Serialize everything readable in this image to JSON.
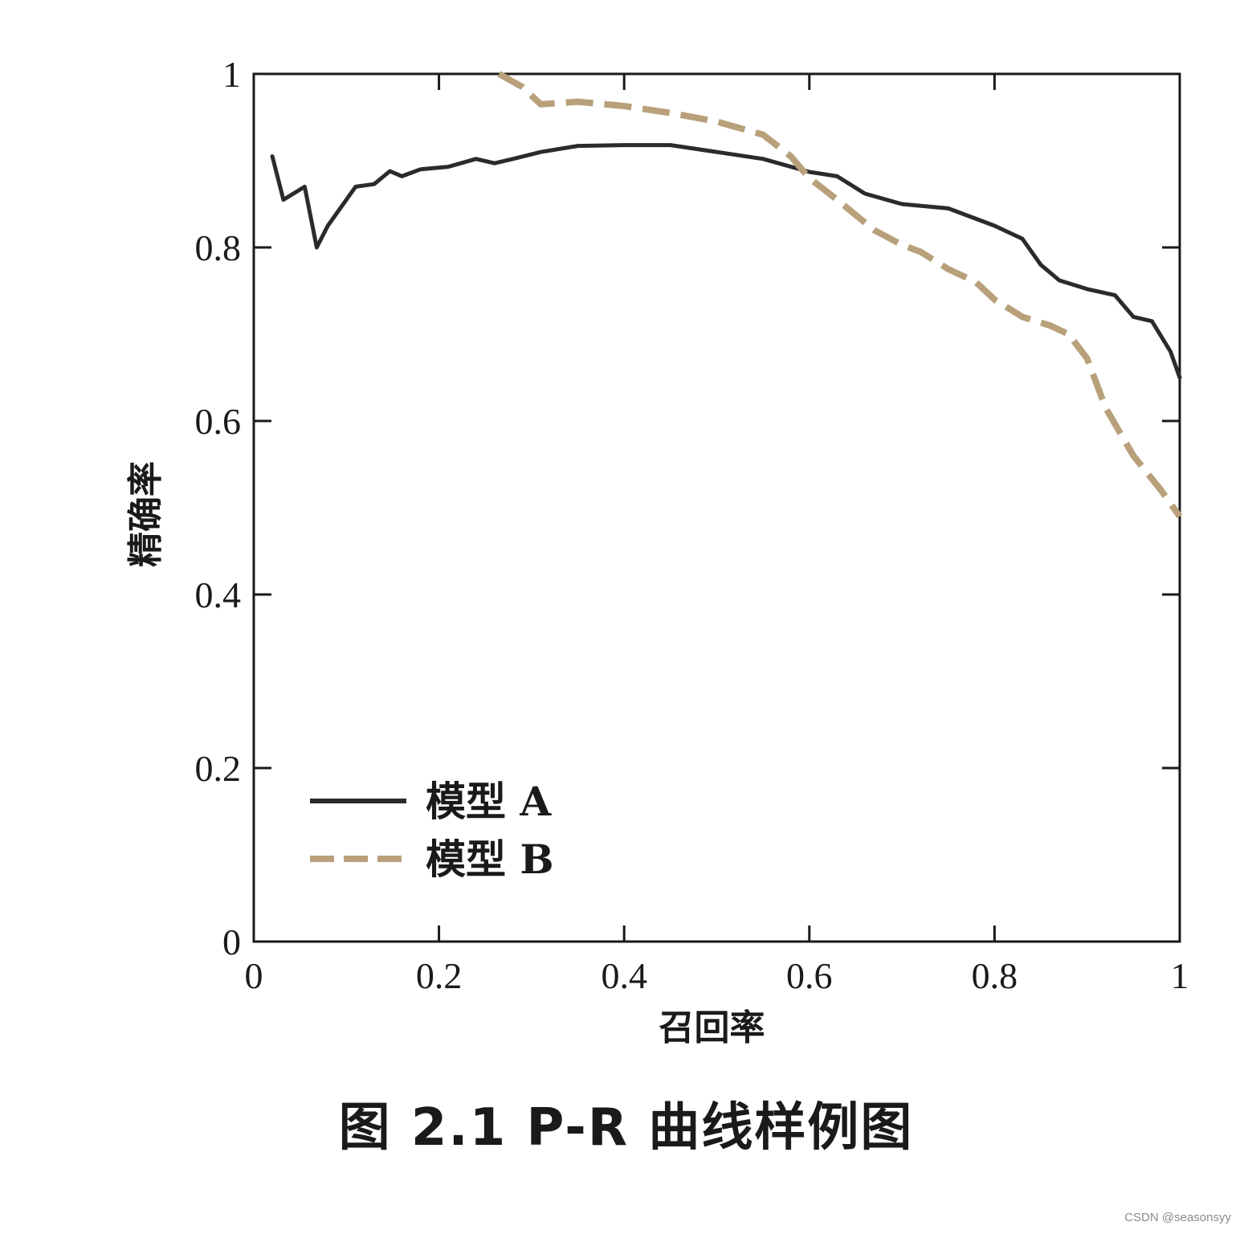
{
  "chart_data": {
    "type": "line",
    "xlabel": "召回率",
    "ylabel": "精确率",
    "xlim": [
      0,
      1
    ],
    "ylim": [
      0,
      1
    ],
    "x_ticks": [
      "0",
      "0.2",
      "0.4",
      "0.6",
      "0.8",
      "1"
    ],
    "y_ticks": [
      "0",
      "0.2",
      "0.4",
      "0.6",
      "0.8",
      "1"
    ],
    "grid": false,
    "legend_position": "bottom-left",
    "series": [
      {
        "name": "模型 A",
        "color": "#2b2b2b",
        "style": "solid",
        "x": [
          0.02,
          0.032,
          0.055,
          0.068,
          0.08,
          0.11,
          0.13,
          0.147,
          0.16,
          0.18,
          0.21,
          0.24,
          0.26,
          0.28,
          0.31,
          0.35,
          0.4,
          0.45,
          0.5,
          0.55,
          0.6,
          0.63,
          0.66,
          0.7,
          0.75,
          0.8,
          0.83,
          0.85,
          0.87,
          0.9,
          0.93,
          0.95,
          0.97,
          0.99,
          1.0
        ],
        "y": [
          0.905,
          0.855,
          0.87,
          0.8,
          0.825,
          0.87,
          0.873,
          0.888,
          0.882,
          0.89,
          0.893,
          0.902,
          0.897,
          0.902,
          0.91,
          0.917,
          0.918,
          0.918,
          0.91,
          0.902,
          0.887,
          0.882,
          0.862,
          0.85,
          0.845,
          0.825,
          0.81,
          0.78,
          0.762,
          0.752,
          0.745,
          0.72,
          0.715,
          0.68,
          0.65
        ]
      },
      {
        "name": "模型 B",
        "color": "#b8a07a",
        "style": "dashed",
        "x": [
          0.265,
          0.29,
          0.31,
          0.35,
          0.4,
          0.45,
          0.5,
          0.55,
          0.58,
          0.6,
          0.63,
          0.67,
          0.7,
          0.72,
          0.75,
          0.78,
          0.8,
          0.83,
          0.86,
          0.88,
          0.9,
          0.92,
          0.95,
          0.98,
          1.0
        ],
        "y": [
          1.0,
          0.985,
          0.965,
          0.968,
          0.963,
          0.955,
          0.945,
          0.93,
          0.905,
          0.88,
          0.855,
          0.82,
          0.803,
          0.795,
          0.775,
          0.76,
          0.74,
          0.72,
          0.71,
          0.7,
          0.672,
          0.615,
          0.56,
          0.52,
          0.49
        ]
      }
    ]
  },
  "caption": "图 2.1    P-R 曲线样例图",
  "watermark": "CSDN @seasonsyy"
}
